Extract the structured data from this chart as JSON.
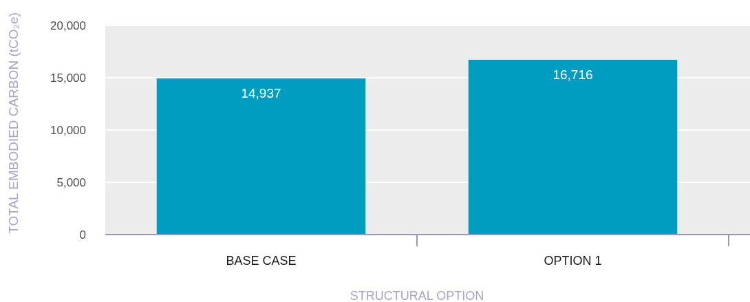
{
  "chart_data": {
    "type": "bar",
    "ylabel": "TOTAL EMBODIED CARBON (tCO₂e)",
    "xlabel": "STRUCTURAL OPTION",
    "categories": [
      "BASE CASE",
      "OPTION 1"
    ],
    "values": [
      14937,
      16716
    ],
    "value_labels": [
      "14,937",
      "16,716"
    ],
    "color": "#009dc1",
    "ylim": [
      0,
      20000
    ],
    "yticks": [
      0,
      {
        "value": 5000,
        "label": "5,000"
      },
      {
        "value": 10000,
        "label": "10,000"
      },
      {
        "value": 15000,
        "label": "15,000"
      },
      {
        "value": 20000,
        "label": "20,000"
      }
    ],
    "grid": "y"
  }
}
